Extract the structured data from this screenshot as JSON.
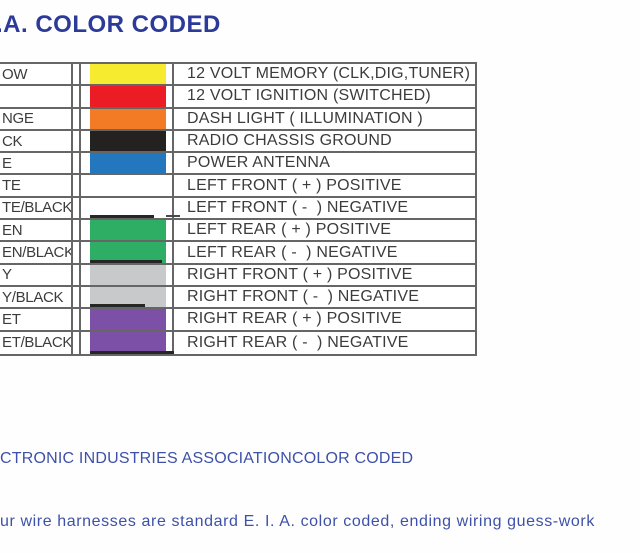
{
  "title": ".A. COLOR CODED",
  "table": {
    "rows": [
      {
        "wire": "OW",
        "swatch": "#f7eb2f",
        "stripe": false,
        "desc": "12 VOLT MEMORY (CLK,DIG,TUNER)"
      },
      {
        "wire": "",
        "swatch": "#ec1c24",
        "stripe": false,
        "desc": "12 VOLT IGNITION (SWITCHED)"
      },
      {
        "wire": "NGE",
        "swatch": "#f47b25",
        "stripe": false,
        "desc": "DASH LIGHT ( ILLUMINATION )"
      },
      {
        "wire": "CK",
        "swatch": "#242121",
        "stripe": false,
        "desc": "RADIO CHASSIS GROUND"
      },
      {
        "wire": "E",
        "swatch": "#2277be",
        "stripe": false,
        "desc": "POWER ANTENNA"
      },
      {
        "wire": "TE",
        "swatch": "#ffffff",
        "stripe": false,
        "desc": "LEFT FRONT ( + ) POSITIVE"
      },
      {
        "wire": "TE/BLACK",
        "swatch": "#ffffff",
        "stripe": true,
        "desc": "LEFT FRONT ( -  ) NEGATIVE"
      },
      {
        "wire": "EN",
        "swatch": "#2ead64",
        "stripe": false,
        "desc": "LEFT REAR ( + ) POSITIVE"
      },
      {
        "wire": "EN/BLACK",
        "swatch": "#2ead64",
        "stripe": true,
        "desc": "LEFT REAR ( -  ) NEGATIVE"
      },
      {
        "wire": "Y",
        "swatch": "#c8c9cb",
        "stripe": false,
        "desc": "RIGHT FRONT ( + ) POSITIVE"
      },
      {
        "wire": "Y/BLACK",
        "swatch": "#c8c9cb",
        "stripe": true,
        "desc": "RIGHT FRONT ( -  ) NEGATIVE"
      },
      {
        "wire": "ET",
        "swatch": "#7b50a6",
        "stripe": false,
        "desc": "RIGHT REAR ( + ) POSITIVE"
      },
      {
        "wire": "ET/BLACK",
        "swatch": "#7b50a6",
        "stripe": true,
        "desc": "RIGHT REAR ( -  ) NEGATIVE"
      }
    ]
  },
  "footer": {
    "line1": "CTRONIC INDUSTRIES ASSOCIATIONCOLOR CODED",
    "line2": "ur wire harnesses are standard E. I. A. color coded, ending wiring guess-work"
  },
  "colors": {
    "title_blue": "#2c3a99",
    "footer_blue": "#3e51a9",
    "grid_gray": "#666666",
    "text_gray": "#3c3c3c",
    "stripe_black": "#262626"
  }
}
